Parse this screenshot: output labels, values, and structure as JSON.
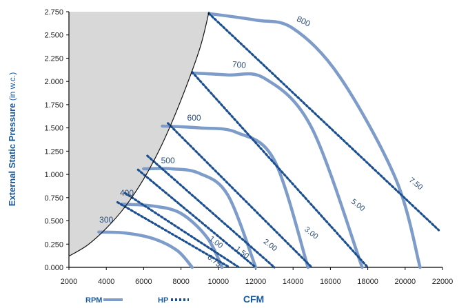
{
  "chart_data": {
    "type": "line",
    "xlabel": "CFM",
    "ylabel": "External Static Pressure",
    "ylabel_unit": "(in w.c.)",
    "xlim": [
      2000,
      22000
    ],
    "ylim": [
      0,
      2.75
    ],
    "x_ticks": [
      "2000",
      "4000",
      "6000",
      "8000",
      "10000",
      "12000",
      "14000",
      "16000",
      "18000",
      "20000",
      "22000"
    ],
    "y_ticks": [
      "0.000",
      "0.250",
      "0.500",
      "0.750",
      "1.000",
      "1.250",
      "1.500",
      "1.750",
      "2.000",
      "2.250",
      "2.500",
      "2.750"
    ],
    "legend": {
      "rpm": "RPM",
      "hp": "HP"
    },
    "colors": {
      "rpm": "#7e9cc9",
      "hp": "#1b4f90",
      "shade": "#d8d8d8"
    },
    "shaded_boundary": [
      [
        2000,
        0.12
      ],
      [
        3000,
        0.24
      ],
      [
        4000,
        0.42
      ],
      [
        5000,
        0.65
      ],
      [
        6000,
        0.95
      ],
      [
        7000,
        1.33
      ],
      [
        8000,
        1.8
      ],
      [
        9000,
        2.35
      ],
      [
        9500,
        2.75
      ]
    ],
    "rpm_series": [
      {
        "name": "300",
        "label_at": [
          4000,
          0.48
        ],
        "points": [
          [
            3600,
            0.38
          ],
          [
            5000,
            0.37
          ],
          [
            6500,
            0.31
          ],
          [
            7800,
            0.18
          ],
          [
            8600,
            0.0
          ]
        ]
      },
      {
        "name": "400",
        "label_at": [
          5100,
          0.77
        ],
        "points": [
          [
            4800,
            0.68
          ],
          [
            6500,
            0.66
          ],
          [
            8000,
            0.58
          ],
          [
            9400,
            0.32
          ],
          [
            10200,
            0.0
          ]
        ]
      },
      {
        "name": "500",
        "label_at": [
          7300,
          1.12
        ],
        "points": [
          [
            6000,
            1.06
          ],
          [
            7500,
            1.06
          ],
          [
            9000,
            1.01
          ],
          [
            10500,
            0.78
          ],
          [
            12000,
            0.0
          ]
        ]
      },
      {
        "name": "600",
        "label_at": [
          8700,
          1.58
        ],
        "points": [
          [
            7000,
            1.52
          ],
          [
            9000,
            1.5
          ],
          [
            11000,
            1.45
          ],
          [
            13000,
            1.15
          ],
          [
            14800,
            0.0
          ]
        ]
      },
      {
        "name": "700",
        "label_at": [
          11100,
          2.15
        ],
        "points": [
          [
            8600,
            2.09
          ],
          [
            10500,
            2.07
          ],
          [
            12500,
            2.03
          ],
          [
            15000,
            1.5
          ],
          [
            17700,
            0.0
          ]
        ]
      },
      {
        "name": "800",
        "label_at": [
          14500,
          2.62
        ],
        "points": [
          [
            9500,
            2.73
          ],
          [
            12000,
            2.66
          ],
          [
            14000,
            2.57
          ],
          [
            16500,
            2.05
          ],
          [
            19500,
            0.95
          ],
          [
            20800,
            0.0
          ]
        ]
      }
    ],
    "hp_series": [
      {
        "name": "0.75",
        "label_at": [
          9700,
          0.05
        ],
        "points": [
          [
            4600,
            0.7
          ],
          [
            10600,
            0.0
          ]
        ]
      },
      {
        "name": "1.00",
        "label_at": [
          9800,
          0.25
        ],
        "points": [
          [
            5000,
            0.8
          ],
          [
            11100,
            0.0
          ]
        ]
      },
      {
        "name": "1.50",
        "label_at": [
          11200,
          0.14
        ],
        "points": [
          [
            5700,
            1.05
          ],
          [
            12000,
            0.0
          ]
        ]
      },
      {
        "name": "2.00",
        "label_at": [
          12700,
          0.22
        ],
        "points": [
          [
            6200,
            1.2
          ],
          [
            13000,
            0.0
          ]
        ]
      },
      {
        "name": "3.00",
        "label_at": [
          14900,
          0.35
        ],
        "points": [
          [
            7300,
            1.55
          ],
          [
            15000,
            0.0
          ]
        ]
      },
      {
        "name": "5.00",
        "label_at": [
          17400,
          0.65
        ],
        "points": [
          [
            8600,
            2.1
          ],
          [
            18000,
            0.0
          ]
        ]
      },
      {
        "name": "7.50",
        "label_at": [
          20500,
          0.88
        ],
        "points": [
          [
            9500,
            2.73
          ],
          [
            21800,
            0.4
          ]
        ]
      }
    ]
  }
}
